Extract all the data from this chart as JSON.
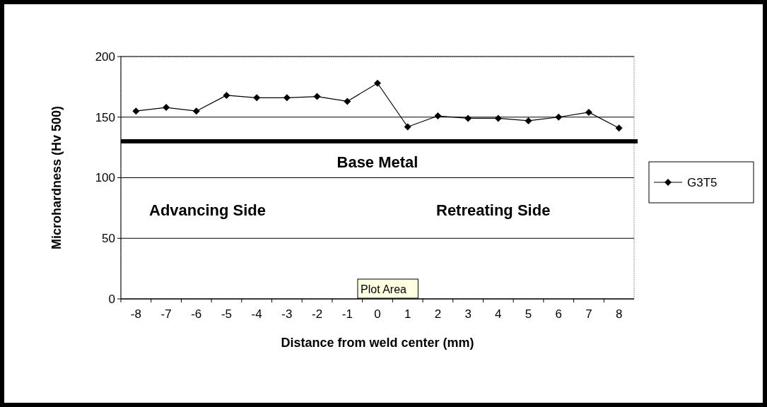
{
  "chart_data": {
    "type": "line",
    "xlabel": "Distance from weld center (mm)",
    "ylabel": "Microhardness (Hv 500)",
    "categories": [
      "-8",
      "-7",
      "-6",
      "-5",
      "-4",
      "-3",
      "-2",
      "-1",
      "0",
      "1",
      "2",
      "3",
      "4",
      "5",
      "6",
      "7",
      "8"
    ],
    "series": [
      {
        "name": "G3T5",
        "color": "#000000",
        "values": [
          155,
          158,
          155,
          168,
          166,
          166,
          167,
          163,
          178,
          142,
          151,
          149,
          149,
          147,
          150,
          154,
          141
        ]
      }
    ],
    "ylim": [
      0,
      200
    ],
    "yticks": [
      0,
      50,
      100,
      150,
      200
    ],
    "grid": "y",
    "legend": "right",
    "marker": "diamond",
    "line_style": "solid",
    "ref_lines": [
      {
        "axis": "y",
        "value": 130,
        "label": "Base Metal",
        "color": "#000000"
      }
    ],
    "annotations": [
      "Advancing Side",
      "Retreating Side",
      "Plot Area"
    ]
  }
}
